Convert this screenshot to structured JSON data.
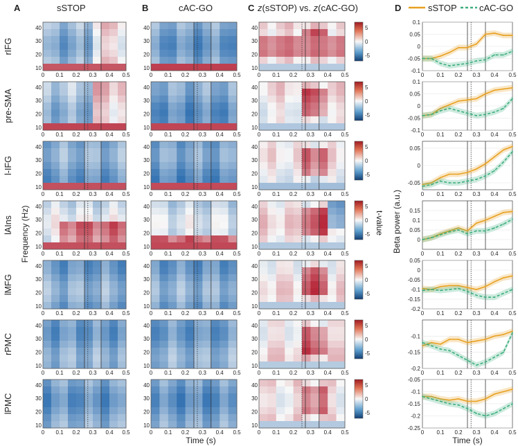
{
  "panels": {
    "A": {
      "letter": "A",
      "title": "sSTOP"
    },
    "B": {
      "letter": "B",
      "title": "cAC-GO"
    },
    "C": {
      "letter": "C",
      "title_parts": [
        "z",
        "(sSTOP) vs. ",
        "z",
        "(cAC-GO)"
      ]
    },
    "D": {
      "letter": "D"
    }
  },
  "legend": {
    "items": [
      {
        "label": "sSTOP",
        "style": "solid",
        "color": "#E8A020"
      },
      {
        "label": "cAC-GO",
        "style": "dashed",
        "color": "#3DAE7E"
      }
    ]
  },
  "rows": [
    "rIFG",
    "pre-SMA",
    "l-IFG",
    "lAIns",
    "lMFG",
    "rPMC",
    "lPMC"
  ],
  "axes": {
    "x_title": "Time  (s)",
    "y_title_left": "Frequency  (Hz)",
    "y_title_right": "Beta power  (a.u.)",
    "colorbar_title": "t-value",
    "x_ticks": [
      "0",
      "0.1",
      "0.2",
      "0.3",
      "0.4",
      "0.5"
    ],
    "freq_ticks": [
      "10",
      "20",
      "30",
      "40"
    ],
    "colorbar_ticks": [
      "5",
      "0",
      "-5"
    ]
  },
  "chart_data": [
    {
      "type": "heatmap",
      "panel": "A",
      "title": "sSTOP",
      "xlabel": "Time  (s)",
      "ylabel": "Frequency  (Hz)",
      "xlim": [
        0,
        0.5
      ],
      "ylim": [
        8,
        44
      ],
      "clim": [
        -7,
        7
      ],
      "vertical_lines": [
        {
          "x": 0.25,
          "style": "solid"
        },
        {
          "x": 0.27,
          "style": "dotted"
        },
        {
          "x": 0.35,
          "style": "solid"
        }
      ],
      "rows": [
        "rIFG",
        "pre-SMA",
        "l-IFG",
        "lAIns",
        "lMFG",
        "rPMC",
        "lPMC"
      ]
    },
    {
      "type": "heatmap",
      "panel": "B",
      "title": "cAC-GO",
      "xlabel": "Time  (s)",
      "xlim": [
        0,
        0.5
      ],
      "ylim": [
        8,
        44
      ],
      "clim": [
        -7,
        7
      ],
      "vertical_lines": [
        {
          "x": 0.25,
          "style": "solid"
        },
        {
          "x": 0.27,
          "style": "dotted"
        },
        {
          "x": 0.35,
          "style": "solid"
        }
      ],
      "rows": [
        "rIFG",
        "pre-SMA",
        "l-IFG",
        "lAIns",
        "lMFG",
        "rPMC",
        "lPMC"
      ]
    },
    {
      "type": "heatmap",
      "panel": "C",
      "title": "z(sSTOP) vs. z(cAC-GO)",
      "xlabel": "Time  (s)",
      "xlim": [
        0,
        0.5
      ],
      "ylim": [
        8,
        44
      ],
      "clim": [
        -7,
        7
      ],
      "colorbar_label": "t-value",
      "colorbar_ticks": [
        5,
        0,
        -5
      ],
      "vertical_lines": [
        {
          "x": 0.25,
          "style": "dotted"
        },
        {
          "x": 0.27,
          "style": "solid"
        },
        {
          "x": 0.35,
          "style": "solid"
        }
      ],
      "rows": [
        "rIFG",
        "pre-SMA",
        "l-IFG",
        "lAIns",
        "lMFG",
        "rPMC",
        "lPMC"
      ]
    },
    {
      "type": "line",
      "panel": "D",
      "xlabel": "Time  (s)",
      "ylabel": "Beta power  (a.u.)",
      "xlim": [
        0,
        0.5
      ],
      "x": [
        0,
        0.05,
        0.1,
        0.15,
        0.2,
        0.25,
        0.3,
        0.35,
        0.4,
        0.45,
        0.5
      ],
      "legend": [
        "sSTOP",
        "cAC-GO"
      ],
      "vertical_lines": [
        {
          "x": 0.25,
          "style": "solid"
        },
        {
          "x": 0.27,
          "style": "dotted"
        },
        {
          "x": 0.35,
          "style": "solid"
        }
      ],
      "subplots": [
        {
          "region": "rIFG",
          "ylim": [
            -0.1,
            0.1
          ],
          "yticks": [
            -0.1,
            -0.05,
            0,
            0.05,
            0.1
          ],
          "series": [
            {
              "name": "sSTOP",
              "values": [
                -0.05,
                -0.05,
                -0.04,
                -0.025,
                -0.005,
                -0.005,
                0.01,
                0.05,
                0.055,
                0.045,
                0.045
              ]
            },
            {
              "name": "cAC-GO",
              "values": [
                -0.05,
                -0.05,
                -0.07,
                -0.08,
                -0.075,
                -0.07,
                -0.06,
                -0.055,
                -0.035,
                -0.035,
                -0.02
              ]
            }
          ]
        },
        {
          "region": "pre-SMA",
          "ylim": [
            -0.1,
            0.1
          ],
          "yticks": [
            -0.1,
            -0.05,
            0,
            0.05,
            0.1
          ],
          "series": [
            {
              "name": "sSTOP",
              "values": [
                -0.04,
                -0.035,
                -0.01,
                0.005,
                0.02,
                0.025,
                0.03,
                0.05,
                0.065,
                0.07,
                0.075
              ]
            },
            {
              "name": "cAC-GO",
              "values": [
                -0.04,
                -0.035,
                -0.02,
                -0.01,
                -0.02,
                -0.03,
                -0.04,
                -0.035,
                -0.025,
                -0.01,
                0.03
              ]
            }
          ]
        },
        {
          "region": "l-IFG",
          "ylim": [
            -0.07,
            0.07
          ],
          "yticks": [
            -0.05,
            0,
            0.05
          ],
          "series": [
            {
              "name": "sSTOP",
              "values": [
                -0.055,
                -0.05,
                -0.035,
                -0.025,
                -0.025,
                -0.02,
                -0.01,
                0.005,
                0.025,
                0.045,
                0.055
              ]
            },
            {
              "name": "cAC-GO",
              "values": [
                -0.06,
                -0.055,
                -0.045,
                -0.05,
                -0.05,
                -0.045,
                -0.04,
                -0.03,
                -0.015,
                0.01,
                0.04
              ]
            }
          ]
        },
        {
          "region": "lAIns",
          "ylim": [
            -0.05,
            0.2
          ],
          "yticks": [
            0,
            0.05,
            0.1,
            0.15
          ],
          "series": [
            {
              "name": "sSTOP",
              "values": [
                0.0,
                0.01,
                0.03,
                0.045,
                0.06,
                0.045,
                0.085,
                0.1,
                0.12,
                0.14,
                0.145
              ]
            },
            {
              "name": "cAC-GO",
              "values": [
                0.0,
                0.01,
                0.025,
                0.04,
                0.05,
                0.03,
                0.045,
                0.045,
                0.06,
                0.08,
                0.105
              ]
            }
          ]
        },
        {
          "region": "lMFG",
          "ylim": [
            -0.2,
            0.05
          ],
          "yticks": [
            -0.2,
            -0.15,
            -0.1,
            -0.05,
            0,
            0.05
          ],
          "series": [
            {
              "name": "sSTOP",
              "values": [
                -0.095,
                -0.1,
                -0.085,
                -0.08,
                -0.08,
                -0.09,
                -0.1,
                -0.085,
                -0.06,
                -0.04,
                -0.03
              ]
            },
            {
              "name": "cAC-GO",
              "values": [
                -0.105,
                -0.1,
                -0.105,
                -0.1,
                -0.095,
                -0.11,
                -0.13,
                -0.14,
                -0.14,
                -0.12,
                -0.1
              ]
            }
          ]
        },
        {
          "region": "rPMC",
          "ylim": [
            -0.2,
            -0.05
          ],
          "yticks": [
            -0.2,
            -0.15,
            -0.1
          ],
          "series": [
            {
              "name": "sSTOP",
              "values": [
                -0.13,
                -0.12,
                -0.125,
                -0.11,
                -0.11,
                -0.12,
                -0.115,
                -0.11,
                -0.1,
                -0.095,
                -0.085
              ]
            },
            {
              "name": "cAC-GO",
              "values": [
                -0.12,
                -0.13,
                -0.14,
                -0.145,
                -0.16,
                -0.175,
                -0.19,
                -0.18,
                -0.165,
                -0.15,
                -0.09
              ]
            }
          ]
        },
        {
          "region": "lPMC",
          "ylim": [
            -0.25,
            -0.05
          ],
          "yticks": [
            -0.25,
            -0.2,
            -0.15,
            -0.1,
            -0.05
          ],
          "series": [
            {
              "name": "sSTOP",
              "values": [
                -0.12,
                -0.12,
                -0.13,
                -0.135,
                -0.13,
                -0.14,
                -0.14,
                -0.13,
                -0.11,
                -0.1,
                -0.09
              ]
            },
            {
              "name": "cAC-GO",
              "values": [
                -0.12,
                -0.13,
                -0.14,
                -0.15,
                -0.155,
                -0.17,
                -0.19,
                -0.2,
                -0.19,
                -0.17,
                -0.15
              ]
            }
          ]
        }
      ]
    }
  ]
}
